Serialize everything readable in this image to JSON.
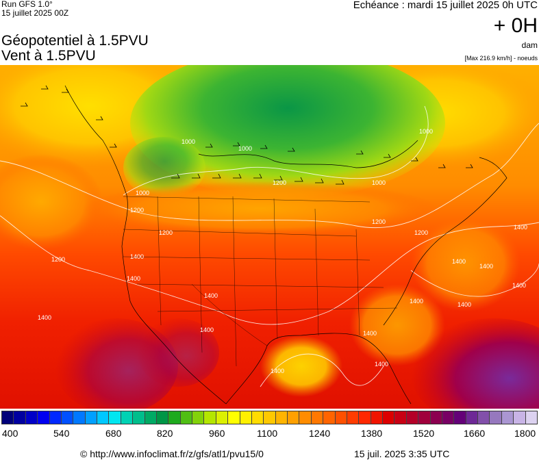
{
  "header": {
    "run": "Run GFS 1.0°",
    "run_date": "15 juillet 2025 00Z",
    "echeance": "Echéance : mardi 15 juillet 2025 0h UTC",
    "lead": "+ 0H",
    "unit": "dam",
    "max_note": "[Max 216.9 km/h] - noeuds",
    "title_line1": "Géopotentiel à 1.5PVU",
    "title_line2": "Vent à 1.5PVU"
  },
  "map": {
    "contour_labels": [
      "1000",
      "1000",
      "1000",
      "1000",
      "1000",
      "1200",
      "1200",
      "1200",
      "1200",
      "1200",
      "1200",
      "1400",
      "1400",
      "1400",
      "1400",
      "1400",
      "1400",
      "1400",
      "1400",
      "1400",
      "1400",
      "1400",
      "1400",
      "1400",
      "1400"
    ]
  },
  "scale": {
    "labels": [
      "400",
      "540",
      "680",
      "820",
      "960",
      "1100",
      "1240",
      "1380",
      "1520",
      "1660",
      "1800"
    ],
    "colors": [
      "#00007a",
      "#0000a0",
      "#0000c8",
      "#0000f0",
      "#0028ff",
      "#0050ff",
      "#0078ff",
      "#00a0ff",
      "#00c8ff",
      "#00e6f0",
      "#00d2b4",
      "#00be8c",
      "#00aa64",
      "#009646",
      "#1eaa1e",
      "#50be14",
      "#82d20a",
      "#b4e600",
      "#dcf000",
      "#ffff00",
      "#fff000",
      "#ffdc00",
      "#ffc800",
      "#ffb400",
      "#ffa000",
      "#ff8c00",
      "#ff7800",
      "#ff6400",
      "#ff5000",
      "#ff3c00",
      "#ff2800",
      "#f01400",
      "#dc0000",
      "#c80014",
      "#b40028",
      "#a0003c",
      "#8c0050",
      "#780064",
      "#640078",
      "#6e2896",
      "#8250aa",
      "#9678be",
      "#aa96d2",
      "#c8b4e6",
      "#dcd2f0"
    ]
  },
  "footer": {
    "url": "© http://www.infoclimat.fr/z/gfs/atl1/pvu15/0",
    "timestamp": "15 juil. 2025  3:35 UTC"
  }
}
